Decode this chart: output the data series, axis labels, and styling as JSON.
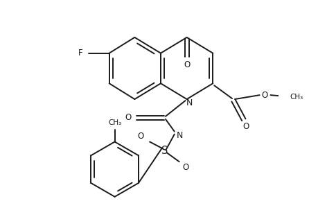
{
  "bg_color": "#ffffff",
  "line_color": "#1a1a1a",
  "line_width": 1.4,
  "font_size": 8.5,
  "figsize": [
    4.6,
    3.0
  ],
  "dpi": 100,
  "xlim": [
    0,
    460
  ],
  "ylim": [
    0,
    300
  ]
}
